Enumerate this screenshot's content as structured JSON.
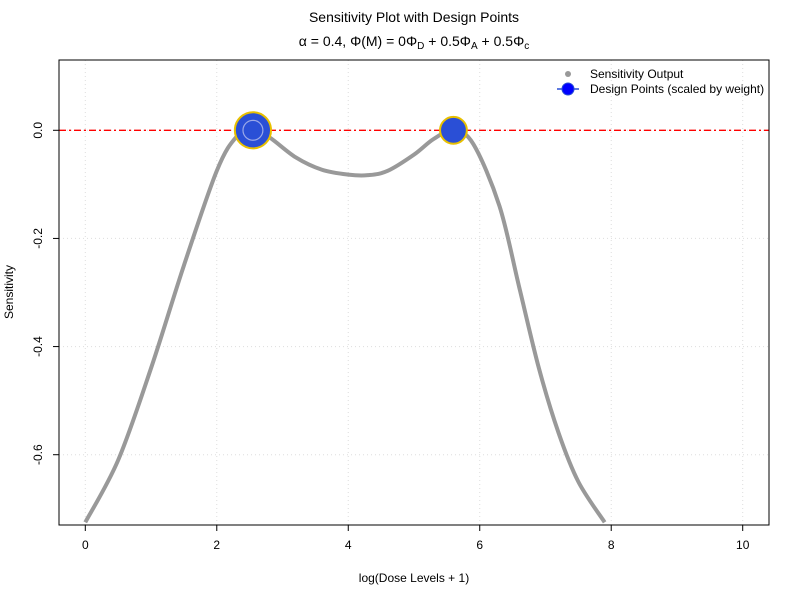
{
  "chart_data": {
    "type": "line",
    "title": "Sensitivity Plot with Design Points",
    "subtitle": {
      "alpha_symbol": "α",
      "alpha_value": " = 0.4, ",
      "phi_m": "Φ(M)",
      "equals": " = 0",
      "phi": "Φ",
      "sub_d": "D",
      "plus_a": " + 0.5",
      "sub_a": "A",
      "plus_c": " + 0.5",
      "sub_c": "c"
    },
    "xlabel": "log(Dose Levels + 1)",
    "ylabel": "Sensitivity",
    "xlim": [
      -0.4,
      10.4
    ],
    "ylim": [
      -0.73,
      0.13
    ],
    "x_ticks": [
      0,
      2,
      4,
      6,
      8,
      10
    ],
    "y_ticks": [
      0.0,
      -0.2,
      -0.4,
      -0.6
    ],
    "y_tick_labels": [
      "0.0",
      "-0.2",
      "-0.4",
      "-0.6"
    ],
    "x_tick_labels": [
      "0",
      "2",
      "4",
      "6",
      "8",
      "10"
    ],
    "grid": true,
    "reference_line": {
      "y": 0,
      "color": "#ff0000"
    },
    "series": [
      {
        "name": "Sensitivity Output",
        "color": "#999999",
        "x": [
          0.0,
          0.5,
          1.0,
          1.5,
          2.0,
          2.3,
          2.55,
          2.8,
          3.2,
          3.6,
          4.0,
          4.3,
          4.6,
          5.0,
          5.3,
          5.6,
          5.9,
          6.3,
          6.6,
          6.9,
          7.2,
          7.5,
          7.9
        ],
        "y": [
          -0.725,
          -0.61,
          -0.44,
          -0.25,
          -0.075,
          -0.012,
          0.0,
          -0.013,
          -0.05,
          -0.073,
          -0.082,
          -0.083,
          -0.075,
          -0.045,
          -0.016,
          0.0,
          -0.025,
          -0.14,
          -0.29,
          -0.44,
          -0.56,
          -0.65,
          -0.725
        ]
      }
    ],
    "design_points": {
      "name": "Design Points (scaled by weight)",
      "fill": "#2a4fd6",
      "edge": "#e8c000",
      "points": [
        {
          "x": 2.55,
          "y": 0.0,
          "weight": 0.62
        },
        {
          "x": 5.6,
          "y": 0.0,
          "weight": 0.38
        }
      ]
    },
    "legend": {
      "position": "top-right",
      "entries": [
        "Sensitivity Output",
        "Design Points (scaled by weight)"
      ]
    }
  }
}
